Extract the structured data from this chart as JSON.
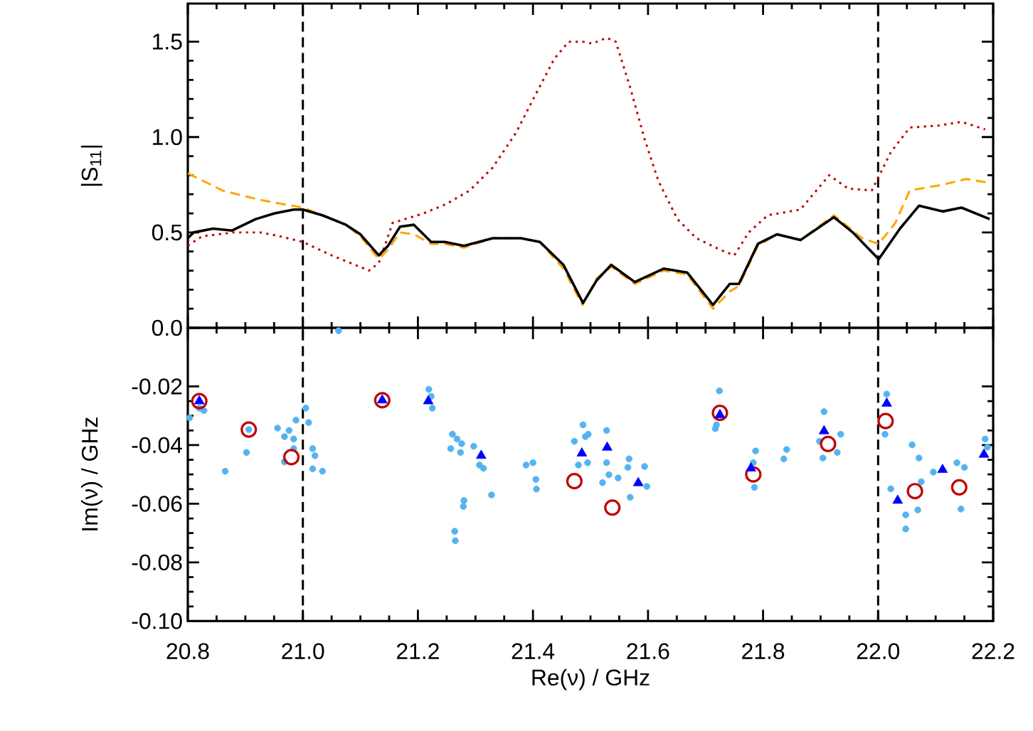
{
  "chart_data": [
    {
      "type": "line",
      "ylabel": "|S$_{11}$|",
      "xlim": [
        20.8,
        22.2
      ],
      "ylim": [
        0,
        1.7
      ],
      "xticks": [
        20.8,
        21.0,
        21.2,
        21.4,
        21.6,
        21.8,
        22.0,
        22.2
      ],
      "yticks": [
        {
          "value": 0,
          "label": "0.0"
        },
        {
          "value": 0.5,
          "label": "0.5"
        },
        {
          "value": 1.0,
          "label": "1.0"
        },
        {
          "value": 1.5,
          "label": "1.5"
        }
      ],
      "tick_labels": "y",
      "ref_lines": [
        {
          "axis": "x",
          "value": 21.0,
          "color": "#000000",
          "line_style": "dashed"
        },
        {
          "axis": "x",
          "value": 22.0,
          "color": "#000000",
          "line_style": "dashed"
        }
      ],
      "series": [
        {
          "color": "#c00000",
          "line_style": "dotted",
          "x": [
            20.8,
            20.825,
            20.88,
            20.926,
            20.96,
            21.0,
            21.05,
            21.115,
            21.132,
            21.156,
            21.21,
            21.25,
            21.29,
            21.33,
            21.37,
            21.404,
            21.437,
            21.462,
            21.487,
            21.503,
            21.528,
            21.544,
            21.569,
            21.594,
            21.618,
            21.651,
            21.684,
            21.725,
            21.75,
            21.775,
            21.808,
            21.865,
            21.915,
            21.948,
            21.989,
            22.022,
            22.055,
            22.104,
            22.145,
            22.186
          ],
          "values": [
            0.43,
            0.48,
            0.5,
            0.5,
            0.48,
            0.45,
            0.38,
            0.3,
            0.34,
            0.55,
            0.6,
            0.65,
            0.72,
            0.84,
            1.02,
            1.22,
            1.41,
            1.5,
            1.5,
            1.49,
            1.52,
            1.5,
            1.26,
            0.99,
            0.77,
            0.57,
            0.47,
            0.41,
            0.38,
            0.5,
            0.59,
            0.62,
            0.8,
            0.73,
            0.72,
            0.92,
            1.05,
            1.06,
            1.08,
            1.04
          ]
        },
        {
          "color": "#ffa500",
          "line_style": "dashed",
          "x": [
            20.8,
            20.86,
            20.926,
            21.0,
            21.034,
            21.075,
            21.1,
            21.132,
            21.148,
            21.169,
            21.193,
            21.223,
            21.247,
            21.28,
            21.33,
            21.379,
            21.412,
            21.453,
            21.486,
            21.511,
            21.536,
            21.577,
            21.627,
            21.668,
            21.713,
            21.742,
            21.758,
            21.791,
            21.824,
            21.865,
            21.923,
            21.972,
            22.001,
            22.03,
            22.055,
            22.112,
            22.153,
            22.194
          ],
          "values": [
            0.81,
            0.72,
            0.67,
            0.63,
            0.59,
            0.54,
            0.48,
            0.36,
            0.41,
            0.5,
            0.49,
            0.44,
            0.44,
            0.42,
            0.47,
            0.47,
            0.45,
            0.31,
            0.12,
            0.26,
            0.32,
            0.23,
            0.3,
            0.28,
            0.1,
            0.19,
            0.22,
            0.43,
            0.49,
            0.46,
            0.59,
            0.47,
            0.44,
            0.55,
            0.72,
            0.75,
            0.78,
            0.76
          ]
        },
        {
          "color": "#000000",
          "line_style": "solid",
          "x": [
            20.8,
            20.81,
            20.844,
            20.877,
            20.918,
            20.951,
            20.984,
            21.0,
            21.034,
            21.075,
            21.1,
            21.132,
            21.148,
            21.169,
            21.193,
            21.223,
            21.247,
            21.28,
            21.33,
            21.379,
            21.412,
            21.453,
            21.487,
            21.511,
            21.536,
            21.577,
            21.627,
            21.668,
            21.713,
            21.742,
            21.758,
            21.791,
            21.824,
            21.865,
            21.923,
            21.956,
            22.001,
            22.038,
            22.071,
            22.112,
            22.145,
            22.194
          ],
          "values": [
            0.47,
            0.5,
            0.52,
            0.51,
            0.57,
            0.6,
            0.62,
            0.62,
            0.59,
            0.54,
            0.49,
            0.38,
            0.43,
            0.53,
            0.54,
            0.45,
            0.45,
            0.43,
            0.47,
            0.47,
            0.45,
            0.33,
            0.13,
            0.25,
            0.33,
            0.24,
            0.31,
            0.29,
            0.12,
            0.23,
            0.23,
            0.44,
            0.49,
            0.46,
            0.58,
            0.5,
            0.36,
            0.52,
            0.64,
            0.61,
            0.63,
            0.57
          ]
        }
      ]
    },
    {
      "type": "scatter",
      "xlabel": "Re(ν) / GHz",
      "ylabel": "Im(ν) / GHz",
      "xlim": [
        20.8,
        22.2
      ],
      "ylim": [
        -0.1,
        0.0
      ],
      "xticks": [
        {
          "value": 20.8,
          "label": "20.8"
        },
        {
          "value": 21.0,
          "label": "21.0"
        },
        {
          "value": 21.2,
          "label": "21.2"
        },
        {
          "value": 21.4,
          "label": "21.4"
        },
        {
          "value": 21.6,
          "label": "21.6"
        },
        {
          "value": 21.8,
          "label": "21.8"
        },
        {
          "value": 22.0,
          "label": "22.0"
        },
        {
          "value": 22.2,
          "label": "22.2"
        }
      ],
      "yticks": [
        -0.02,
        -0.04,
        -0.06,
        -0.08,
        {
          "value": -0.1,
          "label": "-0.10"
        }
      ],
      "ref_lines": [
        {
          "axis": "x",
          "value": 21.0,
          "color": "#000000",
          "line_style": "dashed"
        },
        {
          "axis": "x",
          "value": 22.0,
          "color": "#000000",
          "line_style": "dashed"
        }
      ],
      "series": [
        {
          "color": "#55b4f0",
          "marker": "circle",
          "x": [
            20.803,
            20.82,
            20.828,
            20.865,
            20.902,
            20.906,
            20.956,
            20.968,
            20.976,
            20.984,
            20.984,
            20.968,
            20.988,
            21.005,
            21.01,
            21.017,
            21.021,
            21.017,
            21.034,
            21.062,
            21.219,
            21.223,
            21.225,
            21.26,
            21.268,
            21.276,
            21.257,
            21.274,
            21.28,
            21.279,
            21.264,
            21.265,
            21.297,
            21.307,
            21.314,
            21.328,
            21.388,
            21.4,
            21.405,
            21.406,
            21.472,
            21.487,
            21.491,
            21.479,
            21.496,
            21.495,
            21.528,
            21.528,
            21.532,
            21.521,
            21.548,
            21.567,
            21.565,
            21.569,
            21.594,
            21.598,
            21.724,
            21.719,
            21.717,
            21.787,
            21.783,
            21.785,
            21.836,
            21.841,
            21.906,
            21.898,
            21.904,
            21.935,
            21.929,
            22.015,
            22.012,
            22.022,
            22.048,
            22.048,
            22.059,
            22.071,
            22.075,
            22.069,
            22.096,
            22.137,
            22.15,
            22.144,
            22.186,
            22.19
          ],
          "values": [
            -0.0307,
            -0.0274,
            -0.0282,
            -0.0489,
            -0.0425,
            -0.0347,
            -0.0342,
            -0.0371,
            -0.035,
            -0.0379,
            -0.0412,
            -0.0457,
            -0.0315,
            -0.0274,
            -0.0323,
            -0.0412,
            -0.0436,
            -0.0481,
            -0.0489,
            -0.001,
            -0.021,
            -0.0234,
            -0.0274,
            -0.0363,
            -0.0379,
            -0.0395,
            -0.0412,
            -0.0425,
            -0.0589,
            -0.0609,
            -0.0694,
            -0.0726,
            -0.0404,
            -0.0468,
            -0.0479,
            -0.057,
            -0.0468,
            -0.046,
            -0.0517,
            -0.055,
            -0.0387,
            -0.0331,
            -0.0371,
            -0.0468,
            -0.0363,
            -0.046,
            -0.035,
            -0.046,
            -0.0501,
            -0.0528,
            -0.0512,
            -0.0447,
            -0.0476,
            -0.0578,
            -0.0473,
            -0.0541,
            -0.0215,
            -0.0331,
            -0.0344,
            -0.042,
            -0.046,
            -0.0544,
            -0.0447,
            -0.0415,
            -0.0286,
            -0.0387,
            -0.0444,
            -0.0363,
            -0.0425,
            -0.0226,
            -0.0363,
            -0.0549,
            -0.0638,
            -0.0686,
            -0.0399,
            -0.0444,
            -0.0525,
            -0.0621,
            -0.0492,
            -0.046,
            -0.0476,
            -0.0618,
            -0.0379,
            -0.0407
          ]
        },
        {
          "color": "#c00000",
          "marker": "circle",
          "x": [
            20.82,
            20.906,
            20.98,
            21.138,
            21.472,
            21.538,
            21.725,
            21.783,
            21.913,
            22.013,
            22.064,
            22.141
          ],
          "values": [
            -0.025,
            -0.0347,
            -0.0441,
            -0.0247,
            -0.0523,
            -0.0613,
            -0.029,
            -0.05,
            -0.0396,
            -0.0318,
            -0.0557,
            -0.0544
          ]
        },
        {
          "color": "#0000ff",
          "marker": "triangle",
          "x": [
            20.82,
            21.138,
            21.218,
            21.31,
            21.485,
            21.529,
            21.583,
            21.725,
            21.779,
            21.906,
            22.015,
            22.034,
            22.112,
            22.184
          ],
          "values": [
            -0.025,
            -0.0247,
            -0.025,
            -0.0436,
            -0.0428,
            -0.0408,
            -0.0529,
            -0.0297,
            -0.0479,
            -0.0352,
            -0.0258,
            -0.0589,
            -0.0484,
            -0.0432
          ]
        }
      ]
    }
  ]
}
